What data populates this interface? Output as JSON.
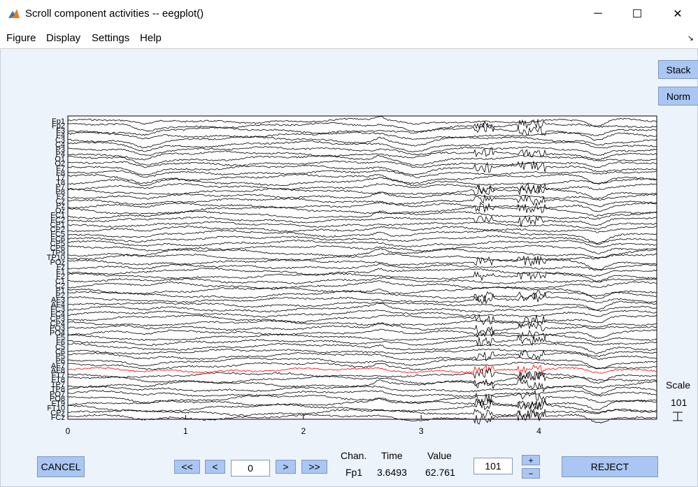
{
  "window": {
    "title": "Scroll component activities -- eegplot()",
    "icon": "matlab-icon",
    "minimize": "─",
    "maximize": "☐",
    "close": "✕"
  },
  "menu": {
    "items": [
      "Figure",
      "Display",
      "Settings",
      "Help"
    ],
    "dock_icon": "↘"
  },
  "controls": {
    "stack_label": "Stack",
    "norm_label": "Norm",
    "cancel_label": "CANCEL",
    "first_label": "<<",
    "prev_label": "<",
    "window_start": "0",
    "next_label": ">",
    "last_label": ">>",
    "scale_value": "101",
    "plus_label": "+",
    "minus_label": "−",
    "reject_label": "REJECT"
  },
  "readout": {
    "chan_header": "Chan.",
    "time_header": "Time",
    "value_header": "Value",
    "chan": "Fp1",
    "time": "3.6493",
    "value": "62.761"
  },
  "scale_legend": {
    "label": "Scale",
    "value": "101"
  },
  "chart_data": {
    "type": "line",
    "x_ticks": [
      "0",
      "1",
      "2",
      "3",
      "4"
    ],
    "xlim": [
      0,
      5
    ],
    "channels": [
      "Fp1",
      "Fp2",
      "F3",
      "F4",
      "C3",
      "C4",
      "P3",
      "P4",
      "O1",
      "O2",
      "F7",
      "F8",
      "T7",
      "T8",
      "P7",
      "P8",
      "Fz",
      "Cz",
      "Pz",
      "Oz",
      "FC1",
      "FC2",
      "CP1",
      "CP2",
      "FC5",
      "FC6",
      "CP5",
      "CP6",
      "TP9",
      "TP10",
      "POz",
      "Fz",
      "F1",
      "F2",
      "C1",
      "C2",
      "P1",
      "P2",
      "AF3",
      "AF4",
      "FC3",
      "FC4",
      "CP3",
      "CP4",
      "PO3",
      "PO4",
      "F5",
      "F6",
      "C5",
      "C6",
      "P5",
      "P6",
      "AF7",
      "AF8",
      "FT7",
      "FT8",
      "TP7",
      "TP8",
      "PO7",
      "PO8",
      "FT9",
      "FT10",
      "CPz",
      "FCz"
    ],
    "highlight_channel_index": 53,
    "highlight_color": "#ff0000",
    "trace_color": "#000000"
  }
}
